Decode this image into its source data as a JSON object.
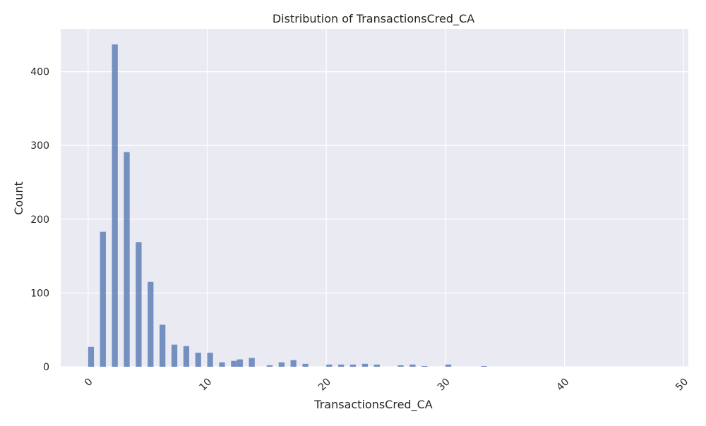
{
  "chart_data": {
    "type": "bar",
    "title": "Distribution of TransactionsCred_CA",
    "xlabel": "TransactionsCred_CA",
    "ylabel": "Count",
    "xlim": [
      -2.3,
      50.4
    ],
    "ylim": [
      0,
      458
    ],
    "x_ticks": [
      0,
      10,
      20,
      30,
      40,
      50
    ],
    "y_ticks": [
      0,
      100,
      200,
      300,
      400
    ],
    "bar_width": 0.49,
    "grid": true,
    "colors": {
      "background": "#eaeaf2",
      "grid": "#ffffff",
      "bar": "#4c72b0"
    },
    "bars": [
      {
        "x": 0,
        "y": 27
      },
      {
        "x": 1,
        "y": 183
      },
      {
        "x": 2,
        "y": 437
      },
      {
        "x": 3,
        "y": 291
      },
      {
        "x": 4,
        "y": 169
      },
      {
        "x": 5,
        "y": 115
      },
      {
        "x": 6,
        "y": 57
      },
      {
        "x": 7,
        "y": 30
      },
      {
        "x": 8,
        "y": 28
      },
      {
        "x": 9,
        "y": 19
      },
      {
        "x": 10,
        "y": 19
      },
      {
        "x": 11,
        "y": 6
      },
      {
        "x": 12,
        "y": 8
      },
      {
        "x": 12.5,
        "y": 10
      },
      {
        "x": 13.5,
        "y": 12
      },
      {
        "x": 15,
        "y": 2
      },
      {
        "x": 16,
        "y": 6
      },
      {
        "x": 17,
        "y": 9
      },
      {
        "x": 18,
        "y": 4
      },
      {
        "x": 20,
        "y": 3
      },
      {
        "x": 21,
        "y": 3
      },
      {
        "x": 22,
        "y": 3
      },
      {
        "x": 23,
        "y": 4
      },
      {
        "x": 24,
        "y": 3
      },
      {
        "x": 26,
        "y": 2
      },
      {
        "x": 27,
        "y": 3
      },
      {
        "x": 28,
        "y": 1
      },
      {
        "x": 30,
        "y": 3
      },
      {
        "x": 33,
        "y": 1
      }
    ]
  }
}
